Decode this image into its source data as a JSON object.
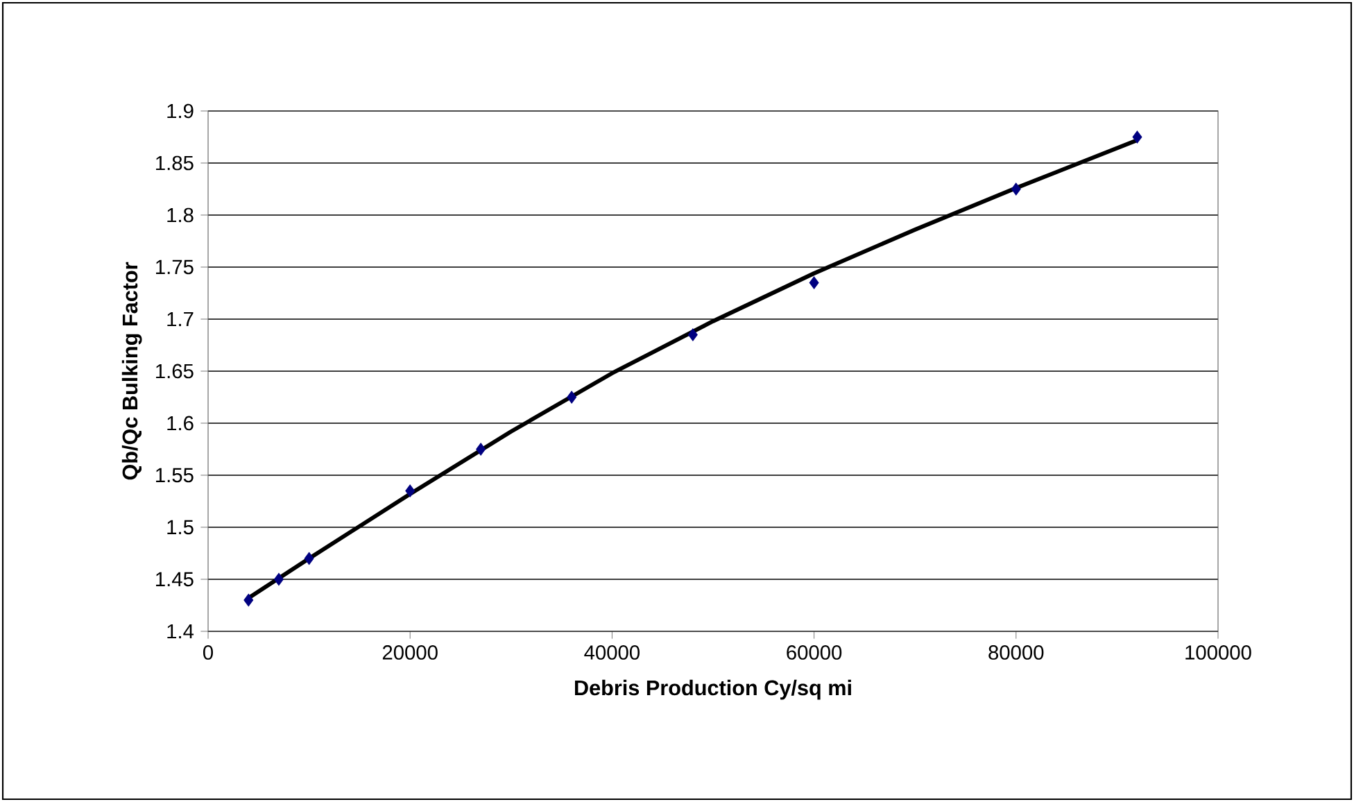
{
  "chart_data": {
    "type": "scatter",
    "xlabel": "Debris Production Cy/sq mi",
    "ylabel": "Qb/Qc Bulking Factor",
    "xlim": [
      0,
      100000
    ],
    "ylim": [
      1.4,
      1.9
    ],
    "xticks": [
      0,
      20000,
      40000,
      60000,
      80000,
      100000
    ],
    "yticks": [
      1.4,
      1.45,
      1.5,
      1.55,
      1.6,
      1.65,
      1.7,
      1.75,
      1.8,
      1.85,
      1.9
    ],
    "grid": "y",
    "series": [
      {
        "marker": "diamond",
        "color": "#000080",
        "x": [
          4000,
          7000,
          10000,
          20000,
          27000,
          36000,
          48000,
          60000,
          80000,
          92000
        ],
        "values": [
          1.43,
          1.45,
          1.47,
          1.535,
          1.575,
          1.625,
          1.685,
          1.735,
          1.825,
          1.875
        ]
      },
      {
        "type": "line",
        "marker": "none",
        "line_style": "solid",
        "color": "#000000",
        "x": [
          4000,
          10000,
          20000,
          30000,
          40000,
          50000,
          60000,
          70000,
          80000,
          92000
        ],
        "values": [
          1.432,
          1.47,
          1.532,
          1.592,
          1.648,
          1.698,
          1.744,
          1.786,
          1.826,
          1.872
        ]
      }
    ]
  }
}
